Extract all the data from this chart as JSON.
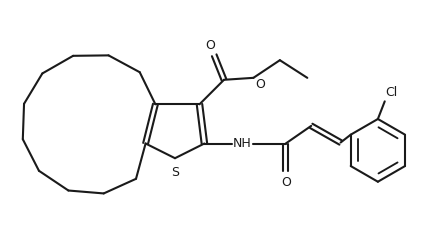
{
  "bg_color": "#ffffff",
  "line_color": "#1a1a1a",
  "line_width": 1.5,
  "figsize": [
    4.48,
    2.38
  ],
  "dpi": 100,
  "xlim": [
    0,
    4.5
  ],
  "ylim": [
    0,
    2.4
  ]
}
